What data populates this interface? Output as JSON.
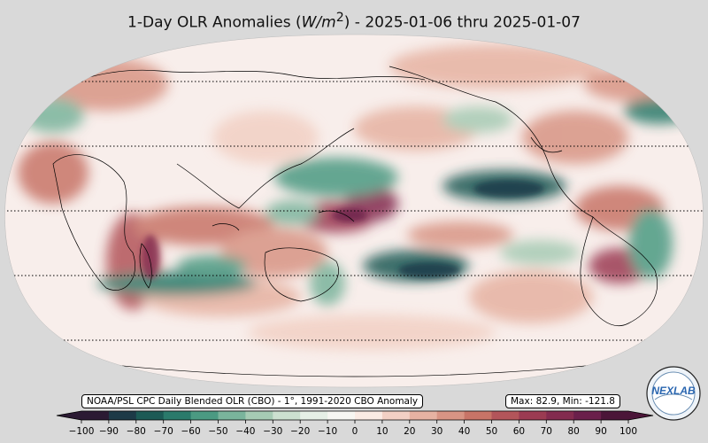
{
  "header": {
    "title_main": "1-Day OLR Anomalies (",
    "title_unit_w": "W/m",
    "title_unit_sup": "2",
    "title_rest": ") - 2025-01-06 thru 2025-01-07"
  },
  "footer": {
    "source_label": "NOAA/PSL CPC Daily Blended OLR (CBO) - 1°, 1991-2020 CBO Anomaly",
    "stats_label": "Max: 82.9,  Min: -121.8",
    "logo_text": "NEXLAB"
  },
  "colorbar": {
    "ticks": [
      "−100",
      "−90",
      "−80",
      "−70",
      "−60",
      "−50",
      "−40",
      "−30",
      "−20",
      "−10",
      "0",
      "10",
      "20",
      "30",
      "40",
      "50",
      "60",
      "70",
      "80",
      "90",
      "100"
    ],
    "colors": [
      "#2b1a33",
      "#1d3a47",
      "#1c5a55",
      "#2a7a6b",
      "#4b9a82",
      "#7ab49c",
      "#a6cbb4",
      "#cce0d0",
      "#e6efe6",
      "#f7f6f2",
      "#faebe4",
      "#f2d0c4",
      "#e6b2a2",
      "#d89484",
      "#c87467",
      "#b3555a",
      "#9b3b52",
      "#832b4f",
      "#6a1f4b",
      "#4b1538"
    ]
  },
  "colors": {
    "background": "#d9d9d9",
    "ocean_neutral": "#f8eeeb",
    "coast_lines": "#000000",
    "negative_anomaly": "#1c6a5e",
    "positive_anomaly": "#b3555a",
    "strong_positive": "#7a2a5a"
  },
  "map_features": [
    "coastlines",
    "country-borders",
    "latitude-dotted-gridlines"
  ]
}
